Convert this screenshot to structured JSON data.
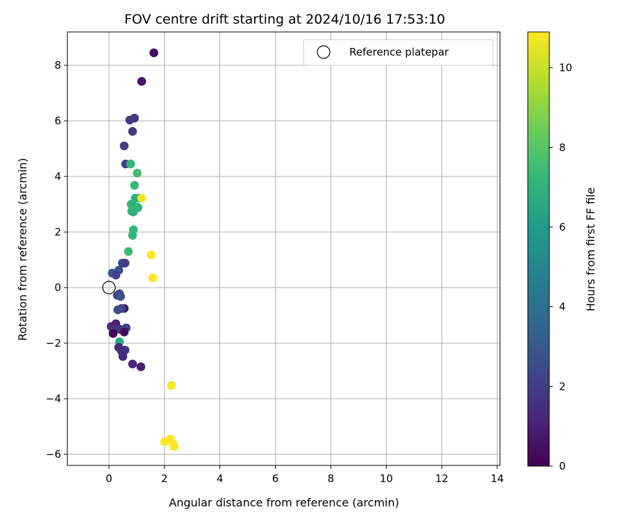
{
  "chart_data": {
    "type": "scatter",
    "title": "FOV centre drift starting at 2024/10/16 17:53:10",
    "xlabel": "Angular distance from reference (arcmin)",
    "ylabel": "Rotation from reference (arcmin)",
    "xlim": [
      -1.5,
      14.1
    ],
    "ylim": [
      -6.4,
      9.2
    ],
    "xticks": [
      "0",
      "2",
      "4",
      "6",
      "8",
      "10",
      "12",
      "14"
    ],
    "xtick_values": [
      0,
      2,
      4,
      6,
      8,
      10,
      12,
      14
    ],
    "yticks": [
      "−6",
      "−4",
      "−2",
      "0",
      "2",
      "4",
      "6",
      "8"
    ],
    "ytick_values": [
      -6,
      -4,
      -2,
      0,
      2,
      4,
      6,
      8
    ],
    "grid": true,
    "legend": {
      "placement": "top-right",
      "entries": [
        "Reference platepar"
      ]
    },
    "reference_point": {
      "x": 0,
      "y": 0,
      "marker": "open-circle"
    },
    "colorbar": {
      "label": "Hours from first FF file",
      "range": [
        0,
        10.9
      ],
      "ticks": [
        "0",
        "2",
        "4",
        "6",
        "8",
        "10"
      ],
      "tick_values": [
        0,
        2,
        4,
        6,
        8,
        10
      ],
      "colormap": "viridis"
    },
    "points": [
      {
        "x": 1.62,
        "y": 8.45,
        "hours": 0.3
      },
      {
        "x": 1.18,
        "y": 7.42,
        "hours": 0.5
      },
      {
        "x": 0.92,
        "y": 6.1,
        "hours": 1.7
      },
      {
        "x": 0.75,
        "y": 6.03,
        "hours": 1.9
      },
      {
        "x": 0.85,
        "y": 5.62,
        "hours": 1.8
      },
      {
        "x": 0.55,
        "y": 5.1,
        "hours": 2.0
      },
      {
        "x": 0.6,
        "y": 4.45,
        "hours": 2.1
      },
      {
        "x": 0.78,
        "y": 4.45,
        "hours": 7.1
      },
      {
        "x": 1.02,
        "y": 4.12,
        "hours": 7.6
      },
      {
        "x": 0.92,
        "y": 3.68,
        "hours": 7.3
      },
      {
        "x": 0.95,
        "y": 3.22,
        "hours": 7.0
      },
      {
        "x": 1.1,
        "y": 3.22,
        "hours": 6.9
      },
      {
        "x": 1.18,
        "y": 3.22,
        "hours": 10.8
      },
      {
        "x": 0.8,
        "y": 3.0,
        "hours": 7.2
      },
      {
        "x": 0.88,
        "y": 2.95,
        "hours": 7.0
      },
      {
        "x": 1.0,
        "y": 2.9,
        "hours": 6.8
      },
      {
        "x": 1.05,
        "y": 2.88,
        "hours": 7.1
      },
      {
        "x": 0.82,
        "y": 2.75,
        "hours": 7.4
      },
      {
        "x": 0.88,
        "y": 2.72,
        "hours": 7.0
      },
      {
        "x": 0.88,
        "y": 2.08,
        "hours": 7.2
      },
      {
        "x": 0.85,
        "y": 1.88,
        "hours": 7.3
      },
      {
        "x": 0.7,
        "y": 1.3,
        "hours": 7.5
      },
      {
        "x": 1.52,
        "y": 1.18,
        "hours": 10.9
      },
      {
        "x": 0.48,
        "y": 0.88,
        "hours": 2.5
      },
      {
        "x": 0.58,
        "y": 0.88,
        "hours": 2.0
      },
      {
        "x": 0.35,
        "y": 0.62,
        "hours": 2.6
      },
      {
        "x": 0.12,
        "y": 0.52,
        "hours": 2.8
      },
      {
        "x": 0.25,
        "y": 0.45,
        "hours": 2.2
      },
      {
        "x": 1.58,
        "y": 0.35,
        "hours": 10.9
      },
      {
        "x": 0.38,
        "y": -0.22,
        "hours": 2.6
      },
      {
        "x": 0.3,
        "y": -0.28,
        "hours": 2.4
      },
      {
        "x": 0.42,
        "y": -0.32,
        "hours": 2.7
      },
      {
        "x": 0.55,
        "y": -0.75,
        "hours": 0.6
      },
      {
        "x": 0.45,
        "y": -0.75,
        "hours": 2.3
      },
      {
        "x": 0.32,
        "y": -0.8,
        "hours": 2.6
      },
      {
        "x": 0.08,
        "y": -1.4,
        "hours": 1.2
      },
      {
        "x": 0.25,
        "y": -1.3,
        "hours": 1.0
      },
      {
        "x": 0.18,
        "y": -1.5,
        "hours": 1.6
      },
      {
        "x": 0.4,
        "y": -1.5,
        "hours": 1.8
      },
      {
        "x": 0.62,
        "y": -1.45,
        "hours": 2.0
      },
      {
        "x": 0.55,
        "y": -1.6,
        "hours": 0.4
      },
      {
        "x": 0.15,
        "y": -1.65,
        "hours": 0.2
      },
      {
        "x": 0.38,
        "y": -1.95,
        "hours": 6.6
      },
      {
        "x": 0.35,
        "y": -2.15,
        "hours": 1.3
      },
      {
        "x": 0.58,
        "y": -2.25,
        "hours": 1.7
      },
      {
        "x": 0.45,
        "y": -2.28,
        "hours": 1.5
      },
      {
        "x": 0.5,
        "y": -2.48,
        "hours": 1.4
      },
      {
        "x": 0.85,
        "y": -2.75,
        "hours": 1.2
      },
      {
        "x": 1.15,
        "y": -2.85,
        "hours": 1.0
      },
      {
        "x": 2.25,
        "y": -3.52,
        "hours": 10.8
      },
      {
        "x": 2.22,
        "y": -5.45,
        "hours": 10.9
      },
      {
        "x": 2.0,
        "y": -5.55,
        "hours": 10.8
      },
      {
        "x": 2.3,
        "y": -5.6,
        "hours": 10.9
      },
      {
        "x": 2.35,
        "y": -5.72,
        "hours": 10.9
      }
    ]
  }
}
